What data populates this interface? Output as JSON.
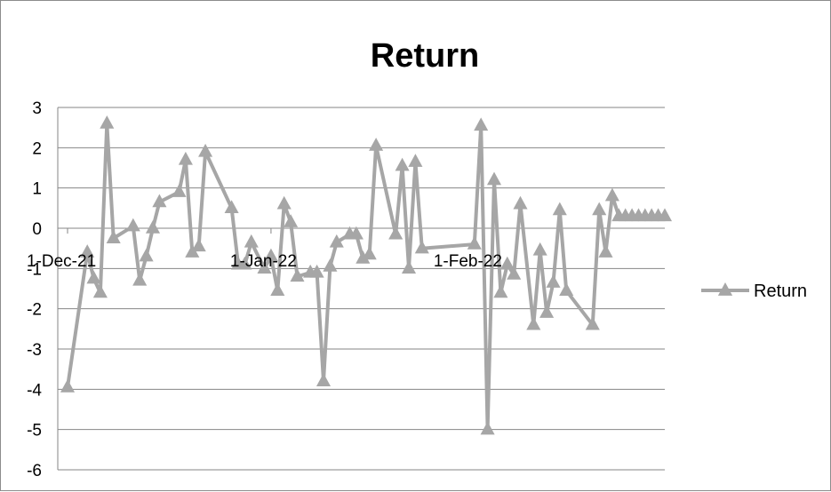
{
  "chart_data": {
    "type": "line",
    "title": "Return",
    "xlabel": "",
    "ylabel": "",
    "ylim": [
      -6,
      3
    ],
    "yticks": [
      3,
      2,
      1,
      0,
      -1,
      -2,
      -3,
      -4,
      -5,
      -6
    ],
    "x_tick_labels": [
      "1-Dec-21",
      "1-Jan-22",
      "1-Feb-22"
    ],
    "grid": true,
    "legend_position": "right",
    "series": [
      {
        "name": "Return",
        "color": "#a6a6a6",
        "marker": "triangle",
        "x": [
          "2021-12-01",
          "2021-12-04",
          "2021-12-05",
          "2021-12-06",
          "2021-12-07",
          "2021-12-08",
          "2021-12-11",
          "2021-12-12",
          "2021-12-13",
          "2021-12-14",
          "2021-12-15",
          "2021-12-18",
          "2021-12-19",
          "2021-12-20",
          "2021-12-21",
          "2021-12-22",
          "2021-12-26",
          "2021-12-27",
          "2021-12-28",
          "2021-12-29",
          "2021-12-31",
          "2022-01-01",
          "2022-01-02",
          "2022-01-03",
          "2022-01-04",
          "2022-01-05",
          "2022-01-07",
          "2022-01-08",
          "2022-01-09",
          "2022-01-10",
          "2022-01-11",
          "2022-01-13",
          "2022-01-14",
          "2022-01-15",
          "2022-01-16",
          "2022-01-17",
          "2022-01-20",
          "2022-01-21",
          "2022-01-22",
          "2022-01-23",
          "2022-01-24",
          "2022-02-01",
          "2022-02-02",
          "2022-02-03",
          "2022-02-04",
          "2022-02-05",
          "2022-02-06",
          "2022-02-07",
          "2022-02-08",
          "2022-02-10",
          "2022-02-11",
          "2022-02-12",
          "2022-02-13",
          "2022-02-14",
          "2022-02-15",
          "2022-02-19",
          "2022-02-20",
          "2022-02-21",
          "2022-02-22",
          "2022-02-23",
          "2022-02-24",
          "2022-02-25",
          "2022-02-26",
          "2022-02-27",
          "2022-02-28",
          "2022-03-01",
          "2022-03-02"
        ],
        "values": [
          -3.95,
          -0.6,
          -1.25,
          -1.6,
          2.6,
          -0.25,
          0.05,
          -1.3,
          -0.7,
          0.0,
          0.65,
          0.9,
          1.7,
          -0.6,
          -0.45,
          1.9,
          0.5,
          -0.9,
          -0.9,
          -0.35,
          -1.0,
          -0.7,
          -1.55,
          0.6,
          0.15,
          -1.2,
          -1.1,
          -1.1,
          -3.8,
          -0.95,
          -0.35,
          -0.15,
          -0.15,
          -0.75,
          -0.65,
          2.05,
          -0.15,
          1.55,
          -1.0,
          1.65,
          -0.5,
          -0.4,
          2.55,
          -5.0,
          1.2,
          -1.6,
          -0.9,
          -1.15,
          0.6,
          -2.4,
          -0.55,
          -2.1,
          -1.35,
          0.45,
          -1.55,
          -2.4,
          0.45,
          -0.6,
          0.8,
          0.3,
          0.3,
          0.3,
          0.3,
          0.3,
          0.3,
          0.3,
          0.3
        ]
      }
    ]
  }
}
